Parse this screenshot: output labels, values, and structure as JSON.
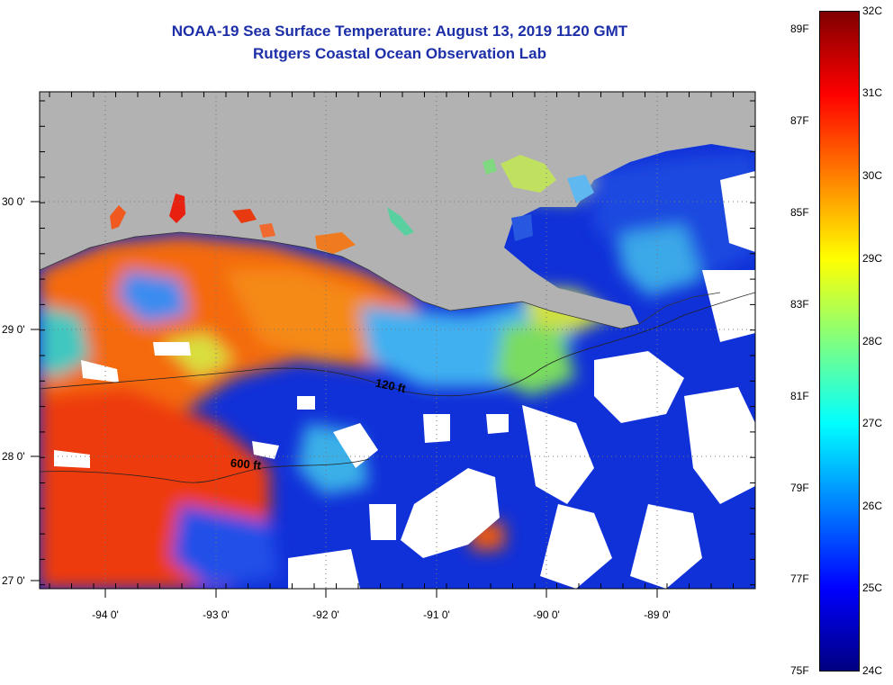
{
  "header": {
    "title": "NOAA-19 Sea Surface Temperature:  August 13, 2019 1120 GMT",
    "subtitle": "Rutgers Coastal Ocean Observation Lab"
  },
  "map": {
    "latitude_labels": [
      "30 0'",
      "29 0'",
      "28 0'",
      "27 0'"
    ],
    "longitude_labels": [
      "-94 0'",
      "-93 0'",
      "-92 0'",
      "-91 0'",
      "-90 0'",
      "-89 0'"
    ],
    "contours": [
      {
        "label": "120 ft"
      },
      {
        "label": "600 ft"
      }
    ],
    "colors": {
      "land": "#b2b2b2",
      "cloud": "#ffffff",
      "contour": "#222222"
    }
  },
  "colorbar": {
    "fahrenheit_labels": [
      "89F",
      "87F",
      "85F",
      "83F",
      "81F",
      "79F",
      "77F",
      "75F"
    ],
    "celsius_labels": [
      "32C",
      "31C",
      "30C",
      "29C",
      "28C",
      "27C",
      "26C",
      "25C",
      "24C"
    ],
    "gradient": [
      "#000080",
      "#0000ff",
      "#0080ff",
      "#00ffff",
      "#80ff80",
      "#ffff00",
      "#ff8000",
      "#ff0000",
      "#800000"
    ]
  }
}
